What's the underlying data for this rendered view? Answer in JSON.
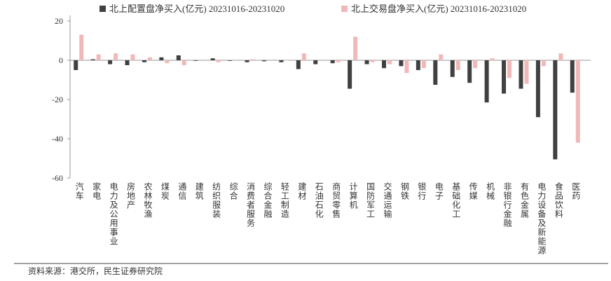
{
  "chart_data": {
    "type": "bar",
    "categories": [
      "汽车",
      "家电",
      "电力及公用事业",
      "房地产",
      "农林牧渔",
      "煤炭",
      "通信",
      "建筑",
      "纺织服装",
      "综合",
      "消费者服务",
      "综合金融",
      "轻工制造",
      "建材",
      "石油石化",
      "商贸零售",
      "计算机",
      "国防军工",
      "交通运输",
      "钢铁",
      "银行",
      "电子",
      "基础化工",
      "传媒",
      "机械",
      "非银行金融",
      "有色金属",
      "电力设备及新能源",
      "食品饮料",
      "医药"
    ],
    "series": [
      {
        "name": "北上配置盘净买入(亿元) 20231016-20231020",
        "color": "#404040",
        "values": [
          -5,
          0.5,
          -2,
          -2.5,
          -1,
          1.5,
          2.5,
          -0.3,
          1,
          -0.3,
          -1,
          -0.5,
          -1,
          -4.5,
          -2,
          -1.5,
          -14.5,
          -2,
          -4,
          -3,
          -5,
          -12.5,
          -8.5,
          -11.5,
          -21.5,
          -17,
          -14.5,
          -29,
          -50.5,
          -16.5
        ]
      },
      {
        "name": "北上交易盘净买入(亿元) 20231016-20231020",
        "color": "#f0b8b8",
        "values": [
          13,
          3,
          3.5,
          3,
          1.5,
          -1.5,
          -2.5,
          0,
          -1,
          -0.3,
          0.5,
          0,
          -0.2,
          3.5,
          0,
          -1,
          12,
          -1,
          -2,
          -6.5,
          -4,
          3,
          -5,
          -4,
          1,
          -9,
          -12,
          -3,
          3.5,
          -42
        ]
      }
    ],
    "ylim": [
      -60,
      20
    ],
    "yticks": [
      -60,
      -40,
      -20,
      0,
      20
    ],
    "grid": false,
    "source": "资料来源：港交所，民生证券研究院"
  }
}
